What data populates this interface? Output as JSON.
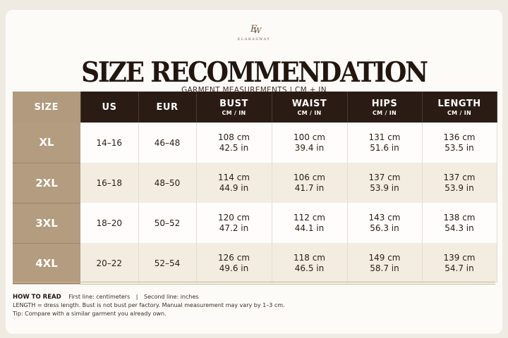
{
  "brand": {
    "monogram": "EW",
    "name": "ELARASWAY"
  },
  "header": {
    "title": "SIZE RECOMMENDATION",
    "subtitle": "GARMENT MEASUREMENTS | CM + IN"
  },
  "table": {
    "columns": [
      {
        "label": "SIZE",
        "unit": ""
      },
      {
        "label": "US",
        "unit": ""
      },
      {
        "label": "EUR",
        "unit": ""
      },
      {
        "label": "BUST",
        "unit": "CM / IN"
      },
      {
        "label": "WAIST",
        "unit": "CM / IN"
      },
      {
        "label": "HIPS",
        "unit": "CM / IN"
      },
      {
        "label": "LENGTH",
        "unit": "CM / IN"
      }
    ],
    "rows": [
      {
        "size": "XL",
        "us": "14–16",
        "eur": "46–48",
        "bust": {
          "cm": "108 cm",
          "in": "42.5 in"
        },
        "waist": {
          "cm": "100 cm",
          "in": "39.4 in"
        },
        "hips": {
          "cm": "131 cm",
          "in": "51.6 in"
        },
        "length": {
          "cm": "136 cm",
          "in": "53.5 in"
        }
      },
      {
        "size": "2XL",
        "us": "16–18",
        "eur": "48–50",
        "bust": {
          "cm": "114 cm",
          "in": "44.9 in"
        },
        "waist": {
          "cm": "106 cm",
          "in": "41.7 in"
        },
        "hips": {
          "cm": "137 cm",
          "in": "53.9 in"
        },
        "length": {
          "cm": "137 cm",
          "in": "53.9 in"
        }
      },
      {
        "size": "3XL",
        "us": "18–20",
        "eur": "50–52",
        "bust": {
          "cm": "120 cm",
          "in": "47.2 in"
        },
        "waist": {
          "cm": "112 cm",
          "in": "44.1 in"
        },
        "hips": {
          "cm": "143 cm",
          "in": "56.3 in"
        },
        "length": {
          "cm": "138 cm",
          "in": "54.3 in"
        }
      },
      {
        "size": "4XL",
        "us": "20–22",
        "eur": "52–54",
        "bust": {
          "cm": "126 cm",
          "in": "49.6 in"
        },
        "waist": {
          "cm": "118 cm",
          "in": "46.5 in"
        },
        "hips": {
          "cm": "149 cm",
          "in": "58.7 in"
        },
        "length": {
          "cm": "139 cm",
          "in": "54.7 in"
        }
      }
    ]
  },
  "notes": {
    "how_to_read_label": "HOW TO READ",
    "first_line": "First line: centimeters",
    "separator": "|",
    "second_line": "Second line: inches",
    "length_note": "LENGTH = dress length. Bust is not bust per factory. Manual measurement may vary by 1–3 cm.",
    "tip": "Tip: Compare with a similar garment you already own."
  },
  "colors": {
    "header_dark": "#2a1c14",
    "size_column": "#b39c7f",
    "row_alt": "#f3ece1",
    "accent_rule": "#c9b79b"
  }
}
